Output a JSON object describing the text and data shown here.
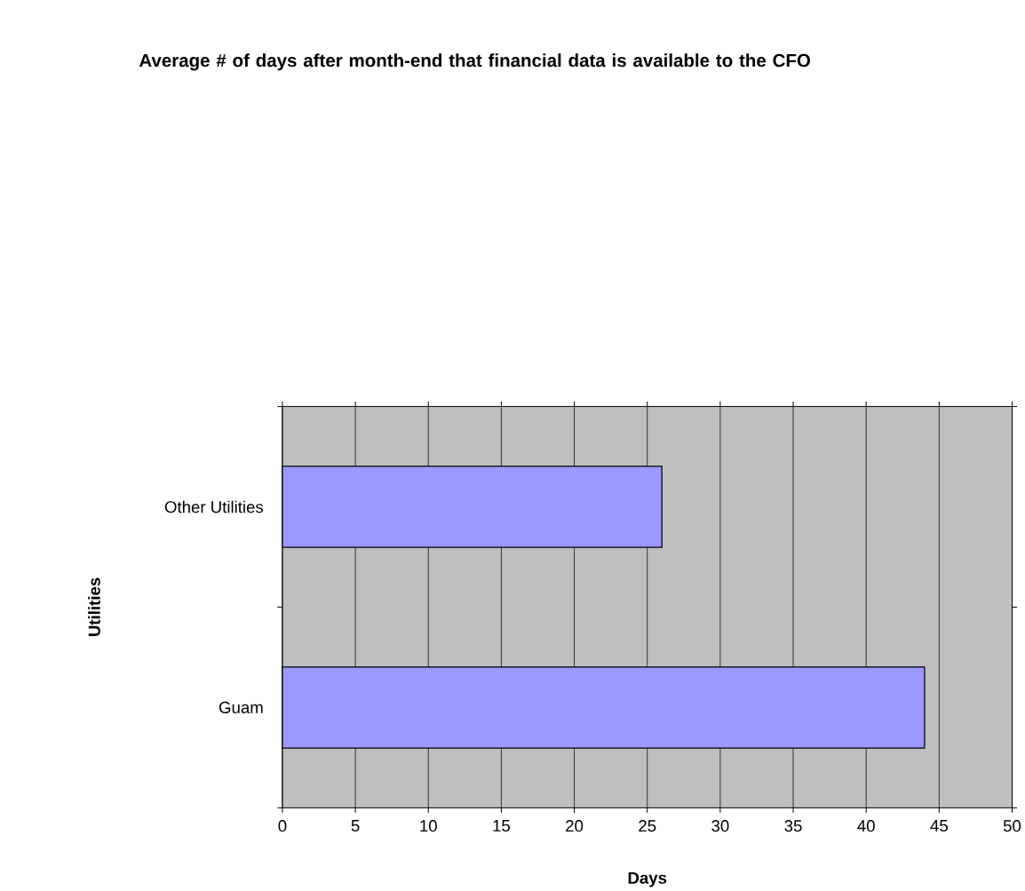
{
  "chart_data": {
    "type": "bar",
    "orientation": "horizontal",
    "title": "Average # of days after month-end that financial data is available to the CFO",
    "categories": [
      "Other Utilities",
      "Guam"
    ],
    "values": [
      26,
      44
    ],
    "color": "#9999ff",
    "xlabel": "Days",
    "ylabel": "Utilities",
    "xlim": [
      0,
      50
    ],
    "xticks": [
      0,
      5,
      10,
      15,
      20,
      25,
      30,
      35,
      40,
      45,
      50
    ],
    "grid": "x"
  }
}
